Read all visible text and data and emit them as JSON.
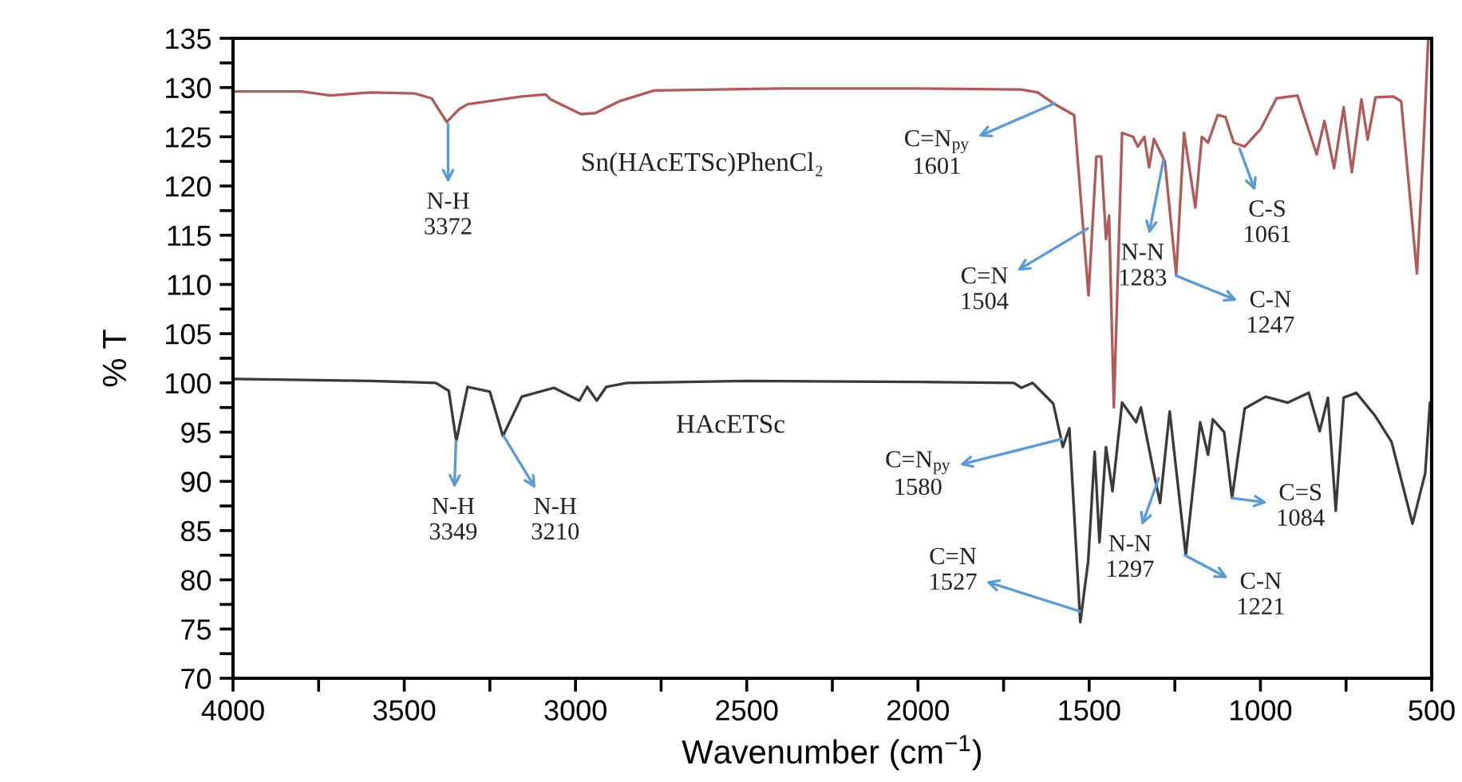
{
  "chart_data": {
    "type": "line",
    "xlabel": "Wavenumber (cm$^{−1}$)",
    "ylabel": "% T",
    "xlim": [
      4000,
      500
    ],
    "ylim": [
      70,
      135
    ],
    "xticks": [
      4000,
      {
        "value": 3750,
        "label": null
      },
      3500,
      {
        "value": 3250,
        "label": null
      },
      3000,
      {
        "value": 2750,
        "label": null
      },
      2500,
      {
        "value": 2250,
        "label": null
      },
      2000,
      {
        "value": 1750,
        "label": null
      },
      1500,
      {
        "value": 1250,
        "label": null
      },
      1000,
      {
        "value": 750,
        "label": null
      },
      500
    ],
    "yticks": [
      70,
      {
        "value": 72.5,
        "label": null
      },
      75,
      {
        "value": 77.5,
        "label": null
      },
      80,
      {
        "value": 82.5,
        "label": null
      },
      85,
      {
        "value": 87.5,
        "label": null
      },
      90,
      {
        "value": 92.5,
        "label": null
      },
      95,
      {
        "value": 97.5,
        "label": null
      },
      100,
      {
        "value": 102.5,
        "label": null
      },
      105,
      {
        "value": 107.5,
        "label": null
      },
      110,
      {
        "value": 112.5,
        "label": null
      },
      115,
      {
        "value": 117.5,
        "label": null
      },
      120,
      {
        "value": 122.5,
        "label": null
      },
      125,
      {
        "value": 127.5,
        "label": null
      },
      130,
      {
        "value": 132.5,
        "label": null
      },
      135
    ],
    "grid": false,
    "legend": false,
    "marker": "none",
    "line_style": "solid",
    "series": [
      {
        "name": "Sn(HAcETSc)PhenCl₂",
        "color": "#b05a5a",
        "x": [
          4000,
          3800,
          3716,
          3600,
          3469,
          3420,
          3376,
          3340,
          3315,
          3157,
          3087,
          3073,
          2984,
          2942,
          2872,
          2770,
          2400,
          2000,
          1700,
          1650,
          1605,
          1544,
          1502,
          1479,
          1465,
          1451,
          1442,
          1428,
          1404,
          1372,
          1358,
          1339,
          1325,
          1311,
          1279,
          1246,
          1223,
          1190,
          1171,
          1153,
          1125,
          1102,
          1078,
          1046,
          999,
          953,
          892,
          836,
          813,
          785,
          757,
          733,
          705,
          687,
          664,
          612,
          589,
          543,
          524,
          510,
          500
        ],
        "values": [
          129.6,
          129.6,
          129.2,
          129.5,
          129.4,
          128.9,
          126.5,
          127.8,
          128.3,
          129.1,
          129.3,
          128.8,
          127.3,
          127.4,
          128.6,
          129.7,
          129.9,
          129.9,
          129.8,
          129.5,
          128.4,
          127.2,
          108.9,
          123,
          123,
          114.6,
          117,
          97.5,
          125.4,
          125,
          124,
          125,
          121.9,
          124.8,
          122.5,
          111,
          125.4,
          117.8,
          125,
          124.4,
          127.2,
          127,
          124.4,
          124,
          125.8,
          128.9,
          129.2,
          123.2,
          126.6,
          121.8,
          128,
          121.4,
          128.8,
          124.7,
          129,
          129.1,
          128.6,
          111.1,
          124,
          135,
          135
        ]
      },
      {
        "name": "HAcETSc",
        "color": "#3a3a3a",
        "x": [
          4000,
          3800,
          3600,
          3408,
          3370,
          3348,
          3315,
          3250,
          3212,
          3157,
          3063,
          2989,
          2966,
          2938,
          2910,
          2849,
          2500,
          2000,
          1720,
          1698,
          1665,
          1605,
          1577,
          1558,
          1526,
          1503,
          1484,
          1470,
          1451,
          1432,
          1404,
          1363,
          1349,
          1311,
          1293,
          1265,
          1218,
          1176,
          1153,
          1139,
          1106,
          1083,
          1046,
          985,
          920,
          859,
          827,
          803,
          780,
          757,
          720,
          664,
          617,
          556,
          519,
          505,
          500
        ],
        "values": [
          100.4,
          100.3,
          100.2,
          100,
          99.2,
          94.1,
          99.6,
          99.1,
          94.6,
          98.6,
          99.5,
          98.2,
          99.6,
          98.2,
          99.6,
          100,
          100.2,
          100.1,
          100,
          99.5,
          100,
          97.9,
          93.5,
          95.4,
          75.7,
          81.9,
          93,
          83.8,
          93.5,
          89,
          98,
          96,
          97.5,
          90.8,
          87.8,
          97.1,
          82.5,
          96,
          92.7,
          96.3,
          95,
          88.3,
          97.4,
          98.6,
          98,
          99,
          95.1,
          98.5,
          87,
          98.5,
          99,
          96.6,
          94,
          85.7,
          90.8,
          98,
          98
        ]
      }
    ],
    "annotations": [
      {
        "text": "N-H\n3372",
        "x": 3372,
        "y": 126.3
      },
      {
        "text": "C=N$_{py}$\n1601",
        "x": 1601,
        "y": 128.4
      },
      {
        "text": "C=N\n1504",
        "x": 1504,
        "y": 115.7
      },
      {
        "text": "N-N\n1283",
        "x": 1283,
        "y": 122.7
      },
      {
        "text": "C-S\n1061",
        "x": 1061,
        "y": 123.8
      },
      {
        "text": "C-N\n1247",
        "x": 1247,
        "y": 110.9
      },
      {
        "text": "N-H\n3349",
        "x": 3349,
        "y": 94.1
      },
      {
        "text": "N-H\n3210",
        "x": 3210,
        "y": 94.6
      },
      {
        "text": "C=N$_{py}$\n1580",
        "x": 1580,
        "y": 94.3
      },
      {
        "text": "C=N\n1527",
        "x": 1527,
        "y": 76.8
      },
      {
        "text": "N-N\n1297",
        "x": 1297,
        "y": 90.3
      },
      {
        "text": "C-N\n1221",
        "x": 1221,
        "y": 82.5
      },
      {
        "text": "C=S\n1084",
        "x": 1084,
        "y": 88.3
      }
    ]
  }
}
